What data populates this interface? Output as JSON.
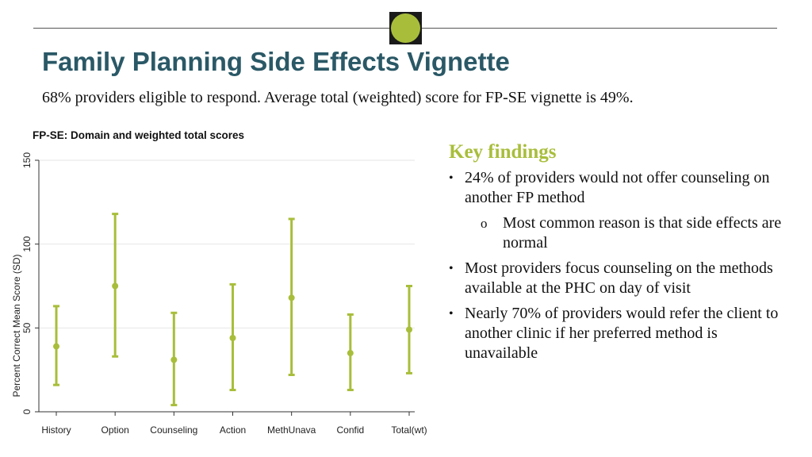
{
  "title": "Family Planning Side Effects Vignette",
  "subtitle": "68% providers eligible to respond. Average total (weighted) score for FP-SE vignette is 49%.",
  "logo": {
    "icon": "green-circle-logo",
    "color": "#a8be3b"
  },
  "key_findings": {
    "title": "Key findings",
    "bullets": [
      {
        "text": "24% of providers would not offer counseling on another FP method",
        "sub": "Most common reason is that side effects are normal"
      },
      {
        "text": "Most providers focus counseling on the methods available at the PHC on day of visit"
      },
      {
        "text": "Nearly 70% of providers would refer the client to another clinic if her preferred method is unavailable"
      }
    ]
  },
  "colors": {
    "accent": "#a8be3b",
    "title": "#2a5866",
    "grid": "#e6e6e6"
  },
  "chart_data": {
    "type": "errorbar",
    "title": "FP-SE: Domain and weighted total scores",
    "ylabel": "Percent Correct Mean Score (SD)",
    "xlabel": "",
    "ylim": [
      0,
      150
    ],
    "yticks": [
      0,
      50,
      100,
      150
    ],
    "grid": true,
    "categories": [
      "History",
      "Option",
      "Counseling",
      "Action",
      "MethUnava",
      "Confid",
      "Total(wt)"
    ],
    "means": [
      39,
      75,
      31,
      44,
      68,
      35,
      49
    ],
    "lower": [
      16,
      33,
      4,
      13,
      22,
      13,
      23
    ],
    "upper": [
      63,
      118,
      59,
      76,
      115,
      58,
      75
    ],
    "color": "#a8be3b"
  }
}
